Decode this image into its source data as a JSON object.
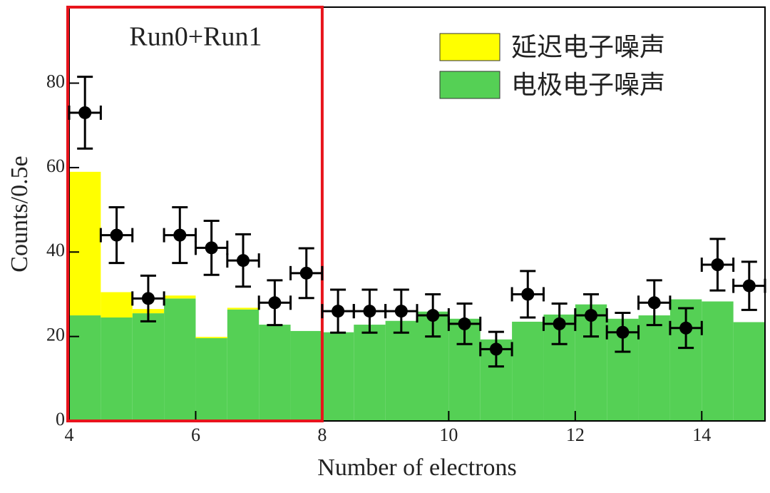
{
  "chart_data": {
    "type": "histogram",
    "xlabel": "Number of electrons",
    "ylabel": "Counts/0.5e",
    "bins": [
      4,
      4.5,
      5,
      5.5,
      6,
      6.5,
      7,
      7.5,
      8,
      8.5,
      9,
      9.5,
      10,
      10.5,
      11,
      11.5,
      12,
      12.5,
      13,
      13.5,
      14,
      14.5,
      15
    ],
    "series": [
      {
        "name": "延迟电子噪声",
        "color": "#ffff00",
        "values": [
          34,
          6,
          1,
          0.7,
          0.3,
          0.4,
          0,
          0,
          0,
          0,
          0,
          0,
          0,
          0,
          0,
          0,
          0,
          0,
          0,
          0,
          0,
          0
        ]
      },
      {
        "name": "电极电子噪声",
        "color": "#55d055",
        "values": [
          25,
          24.5,
          25.5,
          29,
          19.6,
          26.4,
          22.8,
          21.3,
          21,
          22.8,
          23.7,
          25.9,
          24.2,
          19.3,
          23.5,
          25.2,
          27.6,
          24.2,
          25,
          28.8,
          28.3,
          23.4
        ]
      }
    ],
    "points": {
      "x": [
        4.25,
        4.75,
        5.25,
        5.75,
        6.25,
        6.75,
        7.25,
        7.75,
        8.25,
        8.75,
        9.25,
        9.75,
        10.25,
        10.75,
        11.25,
        11.75,
        12.25,
        12.75,
        13.25,
        13.75,
        14.25,
        14.75
      ],
      "values": [
        73,
        44,
        29,
        44,
        41,
        38,
        28,
        35,
        26,
        26,
        26,
        25,
        23,
        17,
        30,
        23,
        25,
        21,
        28,
        22,
        37,
        32
      ],
      "errors": [
        8.5,
        6.6,
        5.4,
        6.6,
        6.4,
        6.2,
        5.3,
        5.9,
        5.1,
        5.1,
        5.1,
        5,
        4.8,
        4.1,
        5.5,
        4.8,
        5,
        4.6,
        5.3,
        4.7,
        6.1,
        5.7
      ],
      "xerr": 0.25,
      "color": "#000000"
    },
    "highlight": {
      "label": "Run0+Run1",
      "x": [
        4,
        8
      ],
      "color": "#e8141c"
    },
    "xlim": [
      4,
      15
    ],
    "ylim": [
      0,
      98
    ],
    "xticks": [
      4,
      6,
      8,
      10,
      12,
      14
    ],
    "yticks": [
      0,
      20,
      40,
      60,
      80
    ],
    "legend": "upper right"
  }
}
